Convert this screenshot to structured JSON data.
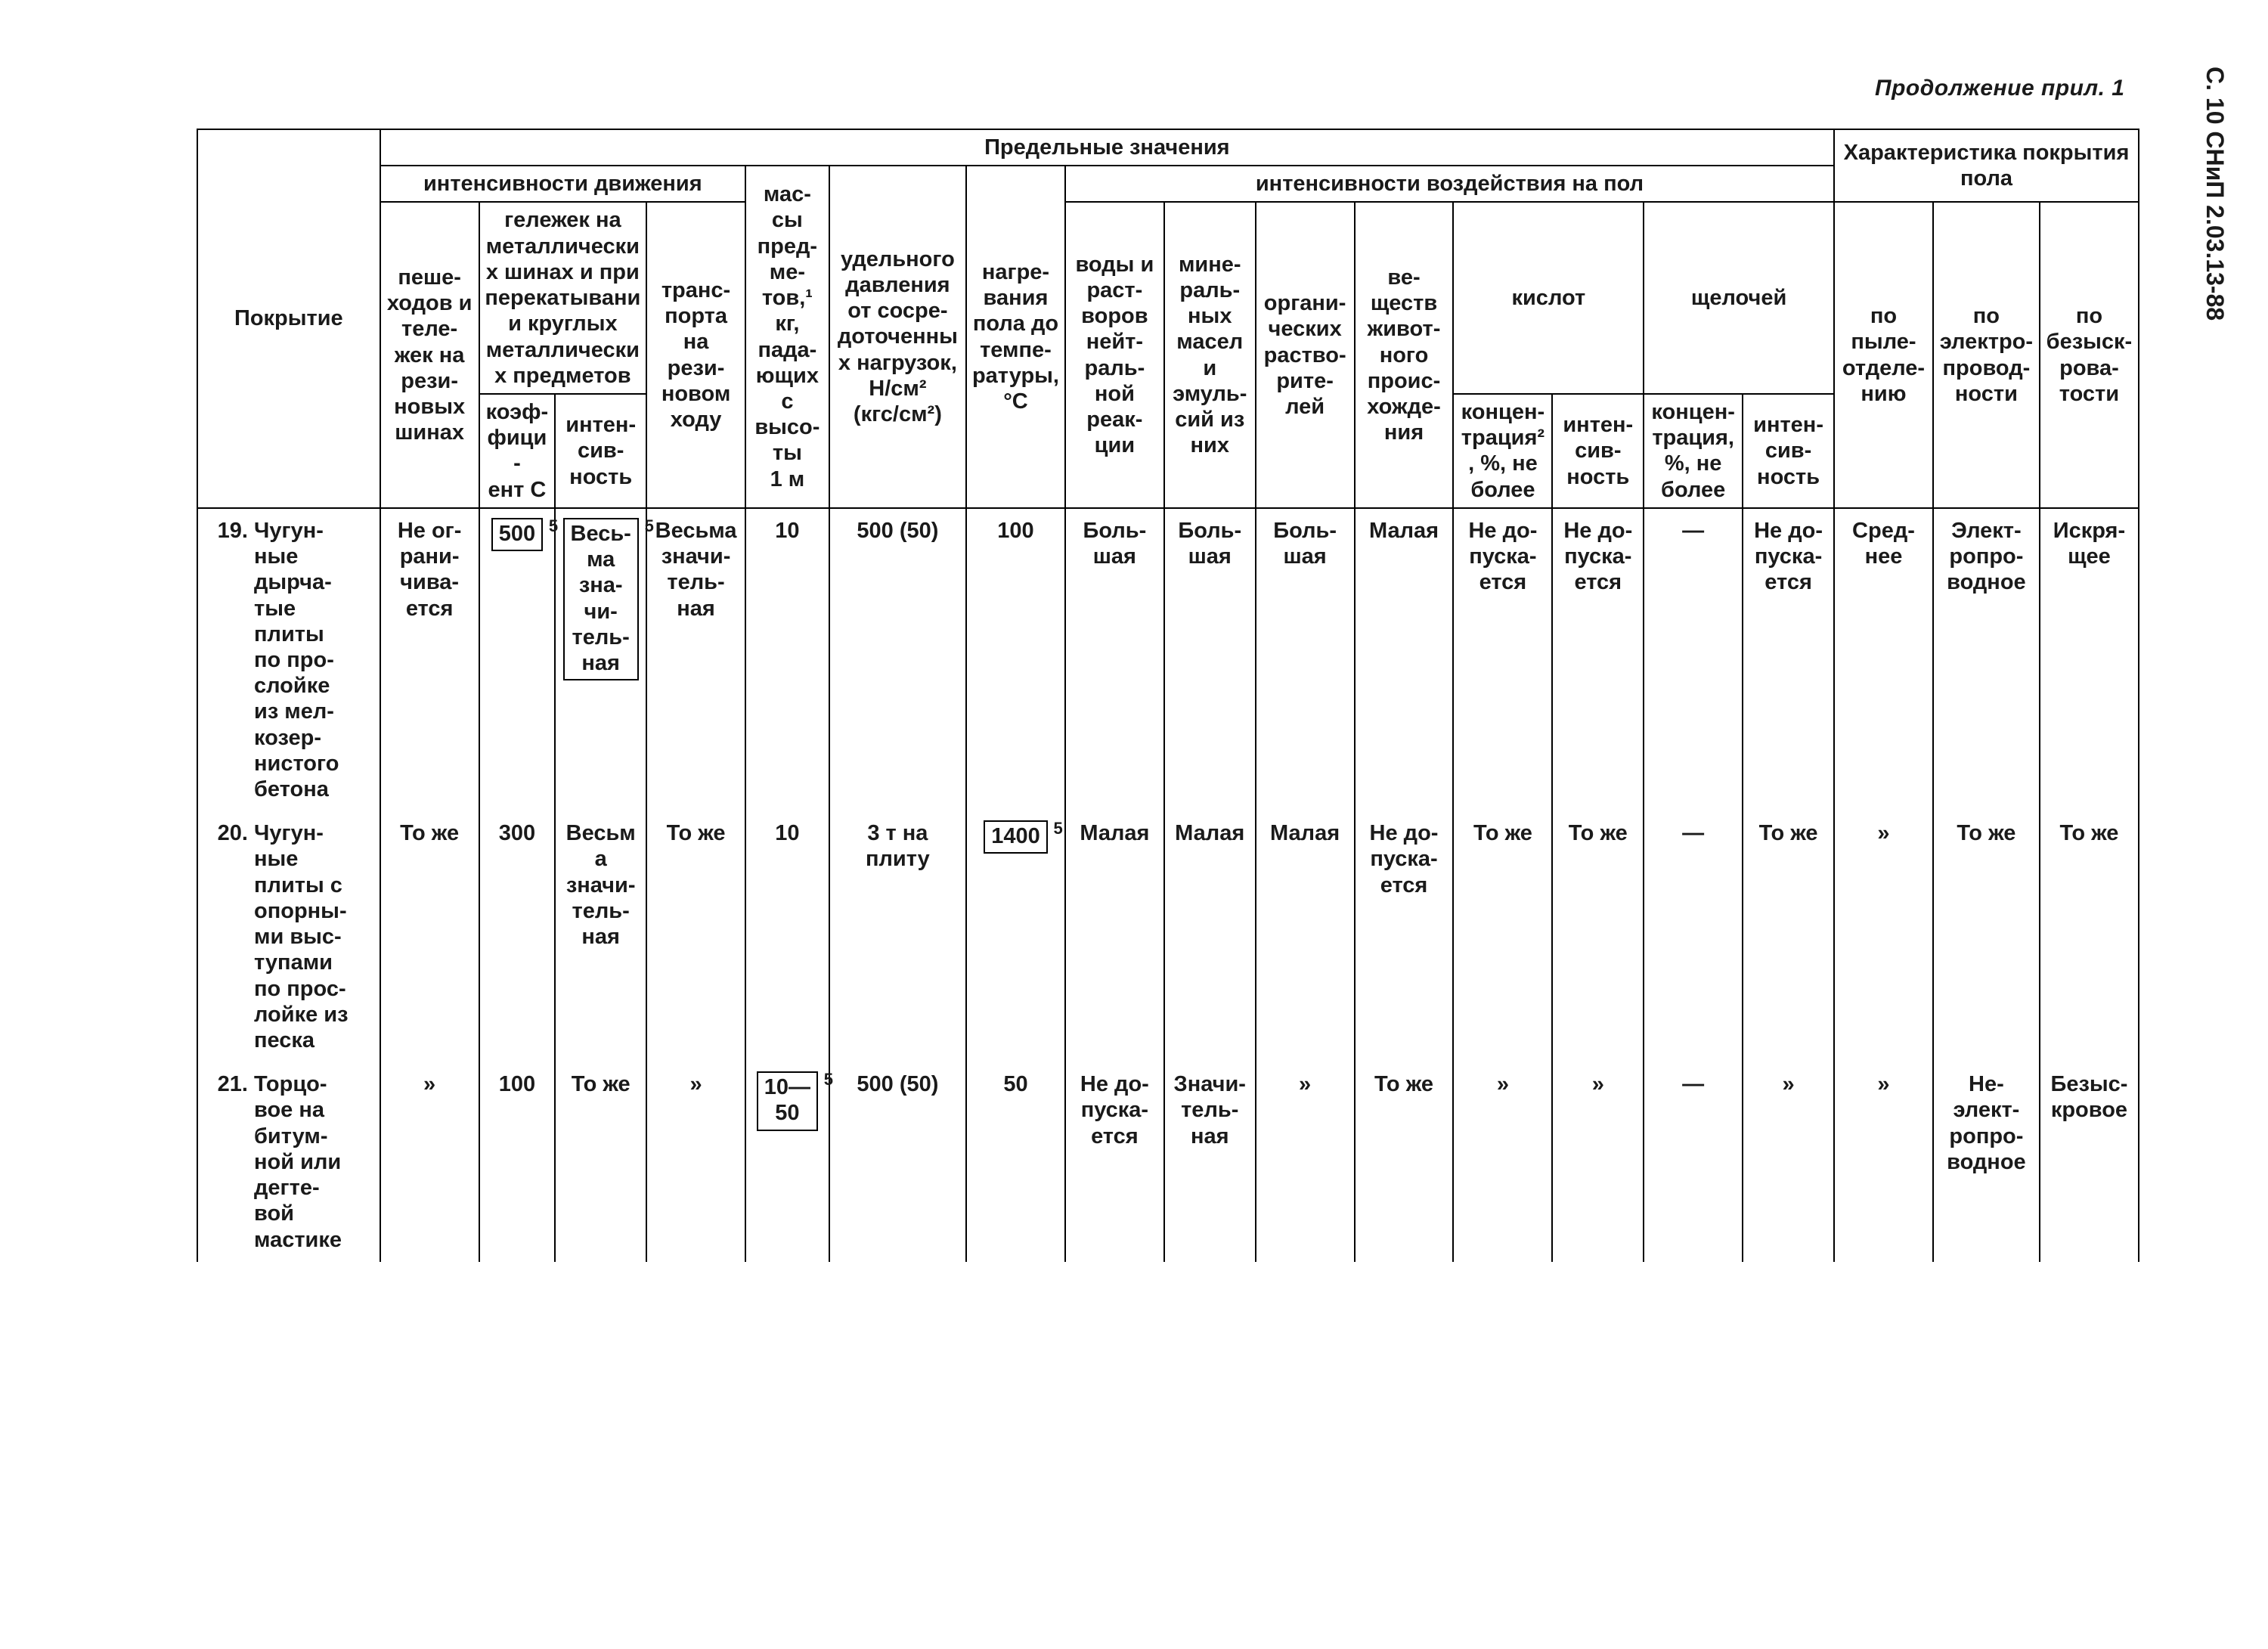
{
  "meta": {
    "continuation": "Продолжение прил. 1",
    "sideLabel": "С. 10 СНиП 2.03.13-88"
  },
  "header": {
    "coating": "Покрытие",
    "limits": "Предельные значения",
    "floorChar": "Характеристика покрытия пола",
    "trafficIntensity": "интенсивности движения",
    "mass": "мас-\nсы\nпред-\nме-\nтов,¹\nкг,\nпада-\nющих\nс\nвысо-\nты\n1 м",
    "pressure": "удельного давления от сосре-\nдоточенных нагрузок, Н/см²\n(кгс/см²)",
    "heating": "нагре-\nвания пола до темпе-\nратуры, °С",
    "floorImpact": "интенсивности воздействия на пол",
    "pedestrians": "пеше-\nходов и теле-\nжек на рези-\nновых шинах",
    "metalCarts": "гележек на металлических шинах и при перекатывании круглых металлических предметов",
    "coefC": "коэф-\nфици-\nент С",
    "intensMove": "интен-\nсив-\nность",
    "transport": "транс-\nпорта на рези-\nновом ходу",
    "water": "воды и раст-\nворов нейт-\nраль-\nной реак-\nции",
    "oils": "мине-\nраль-\nных масел и эмуль-\nсий из них",
    "solvents": "органи-\nческих раство-\nрите-\nлей",
    "animal": "ве-\nществ живот-\nного проис-\nхожде-\nния",
    "acids": "кислот",
    "alkalis": "щелочей",
    "acidConc": "концен-\nтрация², %, не более",
    "acidInt": "интен-\nсив-\nность",
    "alkConc": "концен-\nтрация, %, не более",
    "alkInt": "интен-\nсив-\nность",
    "dust": "по пыле-\nотделе-\nнию",
    "elec": "по электро-\nпровод-\nности",
    "spark": "по безыск-\nрова-\nтости"
  },
  "rows": [
    {
      "num": "19.",
      "coating": "Чугун-\nные\nдырча-\nтые\nплиты\nпо про-\nслойке\nиз мел-\nкозер-\nнистого\nбетона",
      "pedestrians": "Не ог-\nрани-\nчива-\nется",
      "coefC": "500",
      "coefC_box": true,
      "intensMove": "Весь-\nма\nзна-\nчи-\nтель-\nная",
      "intensMove_box": true,
      "transport": "Весьма\nзначи-\nтель-\nная",
      "mass": "10",
      "pressure": "500 (50)",
      "heating": "100",
      "water": "Боль-\nшая",
      "oils": "Боль-\nшая",
      "solvents": "Боль-\nшая",
      "animal": "Малая",
      "acidConc": "Не до-\nпуска-\nется",
      "acidInt": "Не до-\nпуска-\nется",
      "alkConc": "—",
      "alkInt": "Не до-\nпуска-\nется",
      "dust": "Сред-\nнее",
      "elec": "Элект-\nропро-\nводное",
      "spark": "Искря-\nщее"
    },
    {
      "num": "20.",
      "coating": "Чугун-\nные\nплиты с\nопорны-\nми выс-\nтупами\nпо прос-\nлойке из\nпеска",
      "pedestrians": "То же",
      "coefC": "300",
      "intensMove": "Весьма\nзначи-\nтель-\nная",
      "transport": "То же",
      "mass": "10",
      "pressure": "3 т на\nплиту",
      "heating": "1400",
      "heating_box": true,
      "water": "Малая",
      "oils": "Малая",
      "solvents": "Малая",
      "animal": "Не до-\nпуска-\nется",
      "acidConc": "То же",
      "acidInt": "То же",
      "alkConc": "—",
      "alkInt": "То же",
      "dust": "»",
      "elec": "То же",
      "spark": "То же"
    },
    {
      "num": "21.",
      "coating": "Торцо-\nвое на\nбитум-\nной или\nдегте-\nвой\nмастике",
      "pedestrians": "»",
      "coefC": "100",
      "intensMove": "То же",
      "transport": "»",
      "mass": "10—\n50",
      "mass_box": true,
      "pressure": "500 (50)",
      "heating": "50",
      "water": "Не до-\nпуска-\nется",
      "oils": "Значи-\nтель-\nная",
      "solvents": "»",
      "animal": "То же",
      "acidConc": "»",
      "acidInt": "»",
      "alkConc": "—",
      "alkInt": "»",
      "dust": "»",
      "elec": "Не-\nэлект-\nропро-\nводное",
      "spark": "Безыс-\nкровое"
    }
  ],
  "style": {
    "pageWidth": 3000,
    "pageHeight": 2181,
    "borderColor": "#000000",
    "background": "#ffffff",
    "fontSizeHeader": 29,
    "fontSizeBody": 29,
    "fontFamily": "Arial"
  }
}
